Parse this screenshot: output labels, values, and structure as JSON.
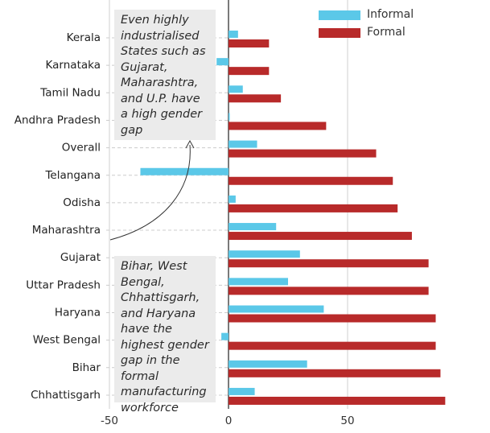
{
  "chart_data": {
    "type": "bar",
    "orientation": "horizontal",
    "categories": [
      "Kerala",
      "Karnataka",
      "Tamil Nadu",
      "Andhra Pradesh",
      "Overall",
      "Telangana",
      "Odisha",
      "Maharashtra",
      "Gujarat",
      "Uttar Pradesh",
      "Haryana",
      "West Bengal",
      "Bihar",
      "Chhattisgarh"
    ],
    "series": [
      {
        "name": "Informal",
        "color": "#5bc8e8",
        "values": [
          4,
          -5,
          6,
          0,
          12,
          -37,
          3,
          20,
          30,
          25,
          40,
          -3,
          33,
          11
        ]
      },
      {
        "name": "Formal",
        "color": "#b82a2a",
        "values": [
          17,
          17,
          22,
          41,
          62,
          69,
          71,
          77,
          84,
          84,
          87,
          87,
          89,
          91
        ]
      }
    ],
    "xlim": [
      -50,
      93
    ],
    "xticks": [
      "-50",
      "0",
      "50"
    ],
    "grid": true,
    "legend_position": "top-right",
    "annotations": [
      {
        "text": "Even highly industrialised States such as Gujarat, Maharashtra, and U.P. have a high gender gap"
      },
      {
        "text": "Bihar, West Bengal, Chhattisgarh, and Haryana have the highest gender gap in the formal manufacturing workforce"
      }
    ]
  }
}
